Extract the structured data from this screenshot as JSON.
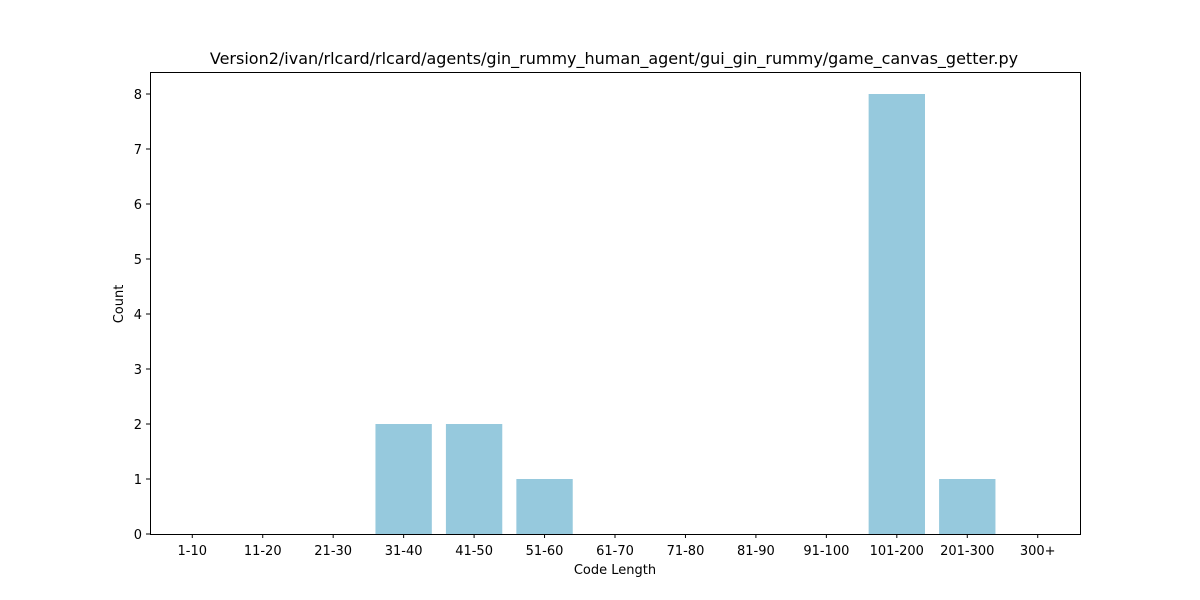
{
  "chart_data": {
    "type": "bar",
    "title": "Version2/ivan/rlcard/rlcard/agents/gin_rummy_human_agent/gui_gin_rummy/game_canvas_getter.py",
    "xlabel": "Code Length",
    "ylabel": "Count",
    "categories": [
      "1-10",
      "11-20",
      "21-30",
      "31-40",
      "41-50",
      "51-60",
      "61-70",
      "71-80",
      "81-90",
      "91-100",
      "101-200",
      "201-300",
      "300+"
    ],
    "values": [
      0,
      0,
      0,
      2,
      2,
      1,
      0,
      0,
      0,
      0,
      8,
      1,
      0
    ],
    "ylim": [
      0,
      8.4
    ],
    "yticks": [
      0,
      1,
      2,
      3,
      4,
      5,
      6,
      7,
      8
    ],
    "bar_color": "#96c9dd",
    "grid": false,
    "legend": "none"
  }
}
